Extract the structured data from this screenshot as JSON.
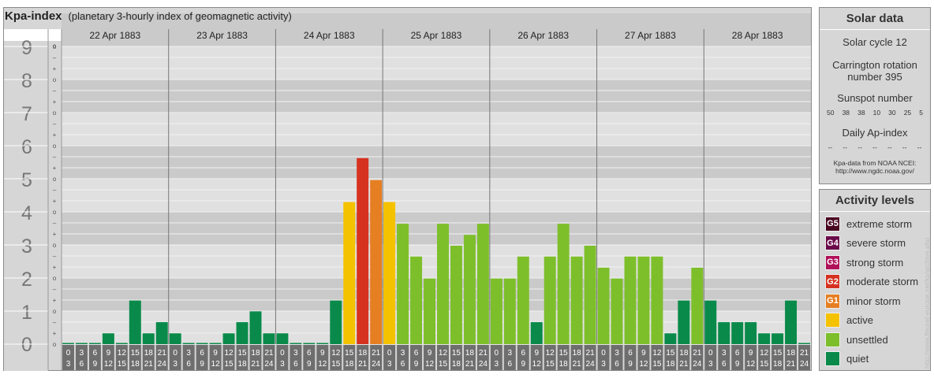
{
  "header": {
    "title": "Kpa-index",
    "subtitle": "(planetary 3-hourly index of geomagnetic activity)"
  },
  "chart_data": {
    "type": "bar",
    "y_tick_labels": [
      "0",
      "1",
      "2",
      "3",
      "4",
      "5",
      "6",
      "7",
      "8",
      "9"
    ],
    "minor_tick_labels": [
      "o",
      "+",
      "–",
      "o"
    ],
    "ylim": [
      0,
      9
    ],
    "dates": [
      "22 Apr 1883",
      "23 Apr 1883",
      "24 Apr 1883",
      "25 Apr 1883",
      "26 Apr 1883",
      "27 Apr 1883",
      "28 Apr 1883"
    ],
    "interval_top_labels": [
      "0",
      "3",
      "6",
      "9",
      "12",
      "15",
      "18",
      "21"
    ],
    "interval_bottom_labels": [
      "3",
      "6",
      "9",
      "12",
      "15",
      "18",
      "21",
      "24"
    ],
    "values": [
      [
        0.0,
        0.0,
        0.0,
        0.33,
        0.0,
        1.33,
        0.33,
        0.67
      ],
      [
        0.33,
        0.0,
        0.0,
        0.0,
        0.33,
        0.67,
        1.0,
        0.33
      ],
      [
        0.33,
        0.0,
        0.0,
        0.0,
        1.33,
        4.33,
        5.67,
        5.0
      ],
      [
        4.33,
        3.67,
        2.67,
        2.0,
        3.67,
        3.0,
        3.33,
        3.67
      ],
      [
        2.0,
        2.0,
        2.67,
        0.67,
        2.67,
        3.67,
        2.67,
        3.0
      ],
      [
        2.33,
        2.0,
        2.67,
        2.67,
        2.67,
        0.33,
        1.33,
        2.33
      ],
      [
        1.33,
        0.67,
        0.67,
        0.67,
        0.33,
        0.33,
        1.33,
        0.0
      ]
    ],
    "colors": {
      "quiet": "#0a8a4a",
      "unsettled": "#7dbf2a",
      "active": "#f5c200",
      "minor": "#e67e22",
      "moderate": "#d63220",
      "strong": "#b0125a",
      "severe": "#6a0a4a",
      "extreme": "#4a0620"
    }
  },
  "solar": {
    "title": "Solar data",
    "cycle": "Solar cycle 12",
    "carrington_line1": "Carrington rotation",
    "carrington_line2": "number 395",
    "sunspot_title": "Sunspot number",
    "sunspot_values": [
      "50",
      "38",
      "38",
      "10",
      "30",
      "25",
      "5"
    ],
    "ap_title": "Daily Ap-index",
    "ap_values": [
      "--",
      "--",
      "--",
      "--",
      "--",
      "--",
      "--"
    ],
    "credit_line1": "Kpa-data from NOAA NCEI:",
    "credit_line2": "http://www.ngdc.noaa.gov/"
  },
  "activity": {
    "title": "Activity levels",
    "levels": [
      {
        "code": "G5",
        "label": "extreme storm",
        "color": "#4a0620"
      },
      {
        "code": "G4",
        "label": "severe storm",
        "color": "#6a0a4a"
      },
      {
        "code": "G3",
        "label": "strong storm",
        "color": "#b0125a"
      },
      {
        "code": "G2",
        "label": "moderate storm",
        "color": "#d63220"
      },
      {
        "code": "G1",
        "label": "minor storm",
        "color": "#e67e22"
      },
      {
        "code": "",
        "label": "active",
        "color": "#f5c200"
      },
      {
        "code": "",
        "label": "unsettled",
        "color": "#7dbf2a"
      },
      {
        "code": "",
        "label": "quiet",
        "color": "#0a8a4a"
      }
    ]
  },
  "watermark": "http://www.fleuret-europe.net/kp/archive.php"
}
